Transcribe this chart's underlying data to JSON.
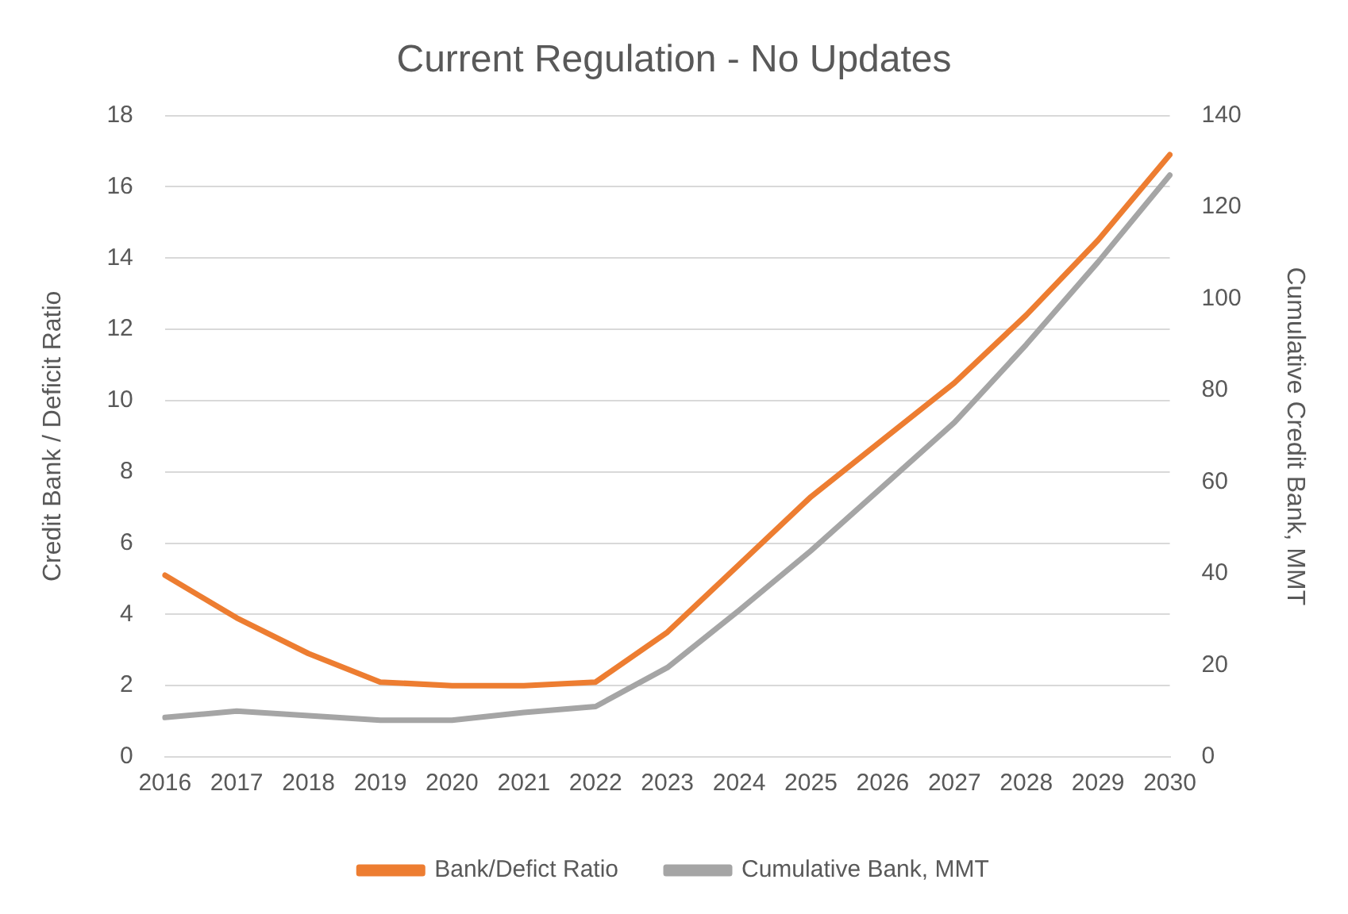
{
  "chart_data": {
    "type": "line",
    "title": "Current Regulation - No Updates",
    "ylabel": "Credit Bank / Deficit Ratio",
    "y2label": "Cumulative Credit Bank, MMT",
    "categories": [
      "2016",
      "2017",
      "2018",
      "2019",
      "2020",
      "2021",
      "2022",
      "2023",
      "2024",
      "2025",
      "2026",
      "2027",
      "2028",
      "2029",
      "2030"
    ],
    "series": [
      {
        "name": "Bank/Defict Ratio",
        "color": "#ed7d31",
        "values": [
          5.1,
          3.9,
          2.9,
          2.1,
          2.0,
          2.0,
          2.1,
          3.5,
          5.4,
          7.3,
          8.9,
          10.5,
          12.4,
          14.5,
          16.9
        ]
      },
      {
        "name": "Cumulative Bank, MMT",
        "color": "#a5a5a5",
        "axis": "y2",
        "values": [
          8.6,
          10,
          9,
          8,
          8,
          9.7,
          11,
          19.5,
          32,
          45,
          59,
          73,
          90,
          108,
          127
        ]
      }
    ],
    "ylim": [
      0,
      18
    ],
    "yticks": [
      0,
      2,
      4,
      6,
      8,
      10,
      12,
      14,
      16,
      18
    ],
    "y2lim": [
      0,
      140
    ],
    "y2ticks": [
      0,
      20,
      40,
      60,
      80,
      100,
      120,
      140
    ],
    "grid": "y",
    "legend": "bottom",
    "marker": "none",
    "line_style": "solid"
  }
}
